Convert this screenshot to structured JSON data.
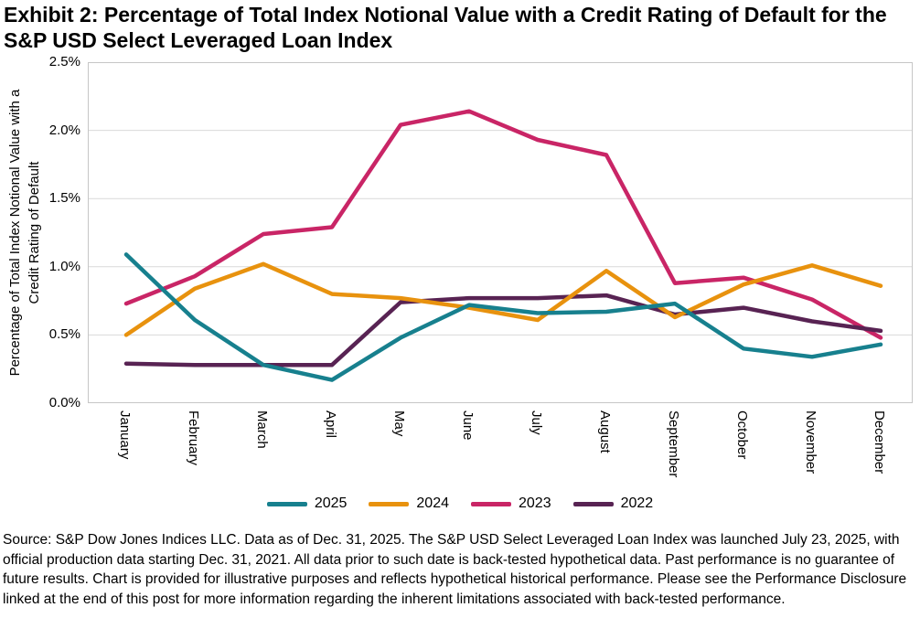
{
  "title": "Exhibit 2: Percentage of Total Index Notional Value with a Credit Rating of Default for the S&P USD Select Leveraged Loan Index",
  "chart_data": {
    "type": "line",
    "categories": [
      "January",
      "February",
      "March",
      "April",
      "May",
      "June",
      "July",
      "August",
      "September",
      "October",
      "November",
      "December"
    ],
    "series": [
      {
        "name": "2025",
        "color": "#17808E",
        "values": [
          1.09,
          0.61,
          0.28,
          0.17,
          0.48,
          0.72,
          0.66,
          0.67,
          0.73,
          0.4,
          0.34,
          0.43
        ]
      },
      {
        "name": "2024",
        "color": "#E8920E",
        "values": [
          0.5,
          0.84,
          1.02,
          0.8,
          0.77,
          0.7,
          0.61,
          0.97,
          0.63,
          0.87,
          1.01,
          0.86
        ]
      },
      {
        "name": "2023",
        "color": "#C92566",
        "values": [
          0.73,
          0.93,
          1.24,
          1.29,
          2.04,
          2.14,
          1.93,
          1.82,
          0.88,
          0.92,
          0.76,
          0.48
        ]
      },
      {
        "name": "2022",
        "color": "#582353",
        "values": [
          0.29,
          0.28,
          0.28,
          0.28,
          0.74,
          0.77,
          0.77,
          0.79,
          0.65,
          0.7,
          0.6,
          0.53
        ]
      }
    ],
    "ylabel": "Percentage of Total Index Notional Value with a Credit Rating of Default",
    "ylabel_line1": "Percentage of Total Index Notional Value with a",
    "ylabel_line2": "Credit Rating of Default",
    "y_ticks": [
      "2.5%",
      "2.0%",
      "1.5%",
      "1.0%",
      "0.5%",
      "0.0%"
    ],
    "ylim": [
      0,
      2.5
    ],
    "grid": "horizontal",
    "legend_position": "bottom",
    "grid_color": "#d9d9d9",
    "border_color": "#c6c6c6"
  },
  "footer": {
    "source_text": "Source: S&P Dow Jones Indices LLC. Data as of Dec. 31, 2025. The S&P USD Select Leveraged Loan Index was launched July 23, 2025, with official production data starting Dec. 31, 2021. All data prior to such date is back-tested hypothetical data. Past performance is no guarantee of future results. Chart is provided for illustrative purposes and reflects hypothetical historical performance. Please see the Performance Disclosure linked at the end of this post for more information regarding the inherent limitations associated with back-tested performance."
  }
}
